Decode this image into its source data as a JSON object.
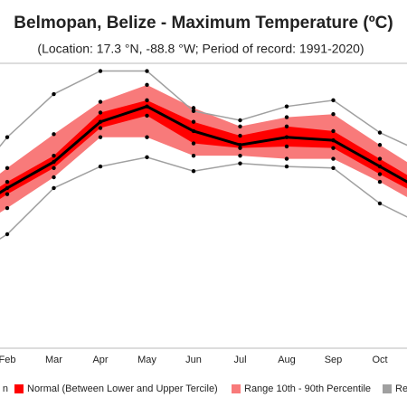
{
  "chart_data": {
    "type": "climate-band",
    "title": "Belmopan, Belize - Maximum Temperature (ºC)",
    "subtitle": "(Location: 17.3 °N, -88.8 °W; Period of record: 1991-2020)",
    "categories": [
      null,
      "Feb",
      "Mar",
      "Apr",
      "May",
      "Jun",
      "Jul",
      "Aug",
      "Sep",
      "Oct",
      null
    ],
    "ylim": [
      18,
      36.5
    ],
    "bands": [
      {
        "name": "Range 10th - 90th Percentile",
        "color": "#f87a7a",
        "upper": [
          27.4,
          29.7,
          31.9,
          34.0,
          35.1,
          33.6,
          32.4,
          33.0,
          33.2,
          31.2,
          29.3
        ],
        "lower": [
          25.2,
          27.1,
          29.1,
          31.7,
          31.7,
          30.5,
          30.5,
          30.3,
          30.3,
          28.8,
          27.1
        ]
      },
      {
        "name": "Normal (Between Lower and Upper Tercile)",
        "color": "#ff0000",
        "upper": [
          26.8,
          28.8,
          30.5,
          33.3,
          34.1,
          32.7,
          31.8,
          32.4,
          32.1,
          30.3,
          28.5
        ],
        "lower": [
          26.0,
          28.0,
          29.7,
          32.3,
          33.1,
          31.3,
          31.0,
          31.1,
          31.0,
          29.3,
          27.7
        ]
      }
    ],
    "series": [
      {
        "name": "n",
        "color": "#000000",
        "values": [
          26.5,
          28.4,
          30.1,
          32.7,
          33.7,
          32.1,
          31.2,
          31.7,
          31.5,
          29.8,
          28.1
        ]
      }
    ],
    "records": {
      "name": "Re",
      "color": "#a0a0a0",
      "max": [
        28.0,
        31.7,
        34.5,
        36.0,
        36.0,
        33.4,
        32.8,
        33.7,
        34.1,
        32.0,
        30.6
      ],
      "min": [
        23.5,
        25.4,
        28.4,
        29.8,
        30.4,
        29.5,
        30.0,
        29.8,
        29.7,
        27.4,
        25.9
      ]
    }
  }
}
